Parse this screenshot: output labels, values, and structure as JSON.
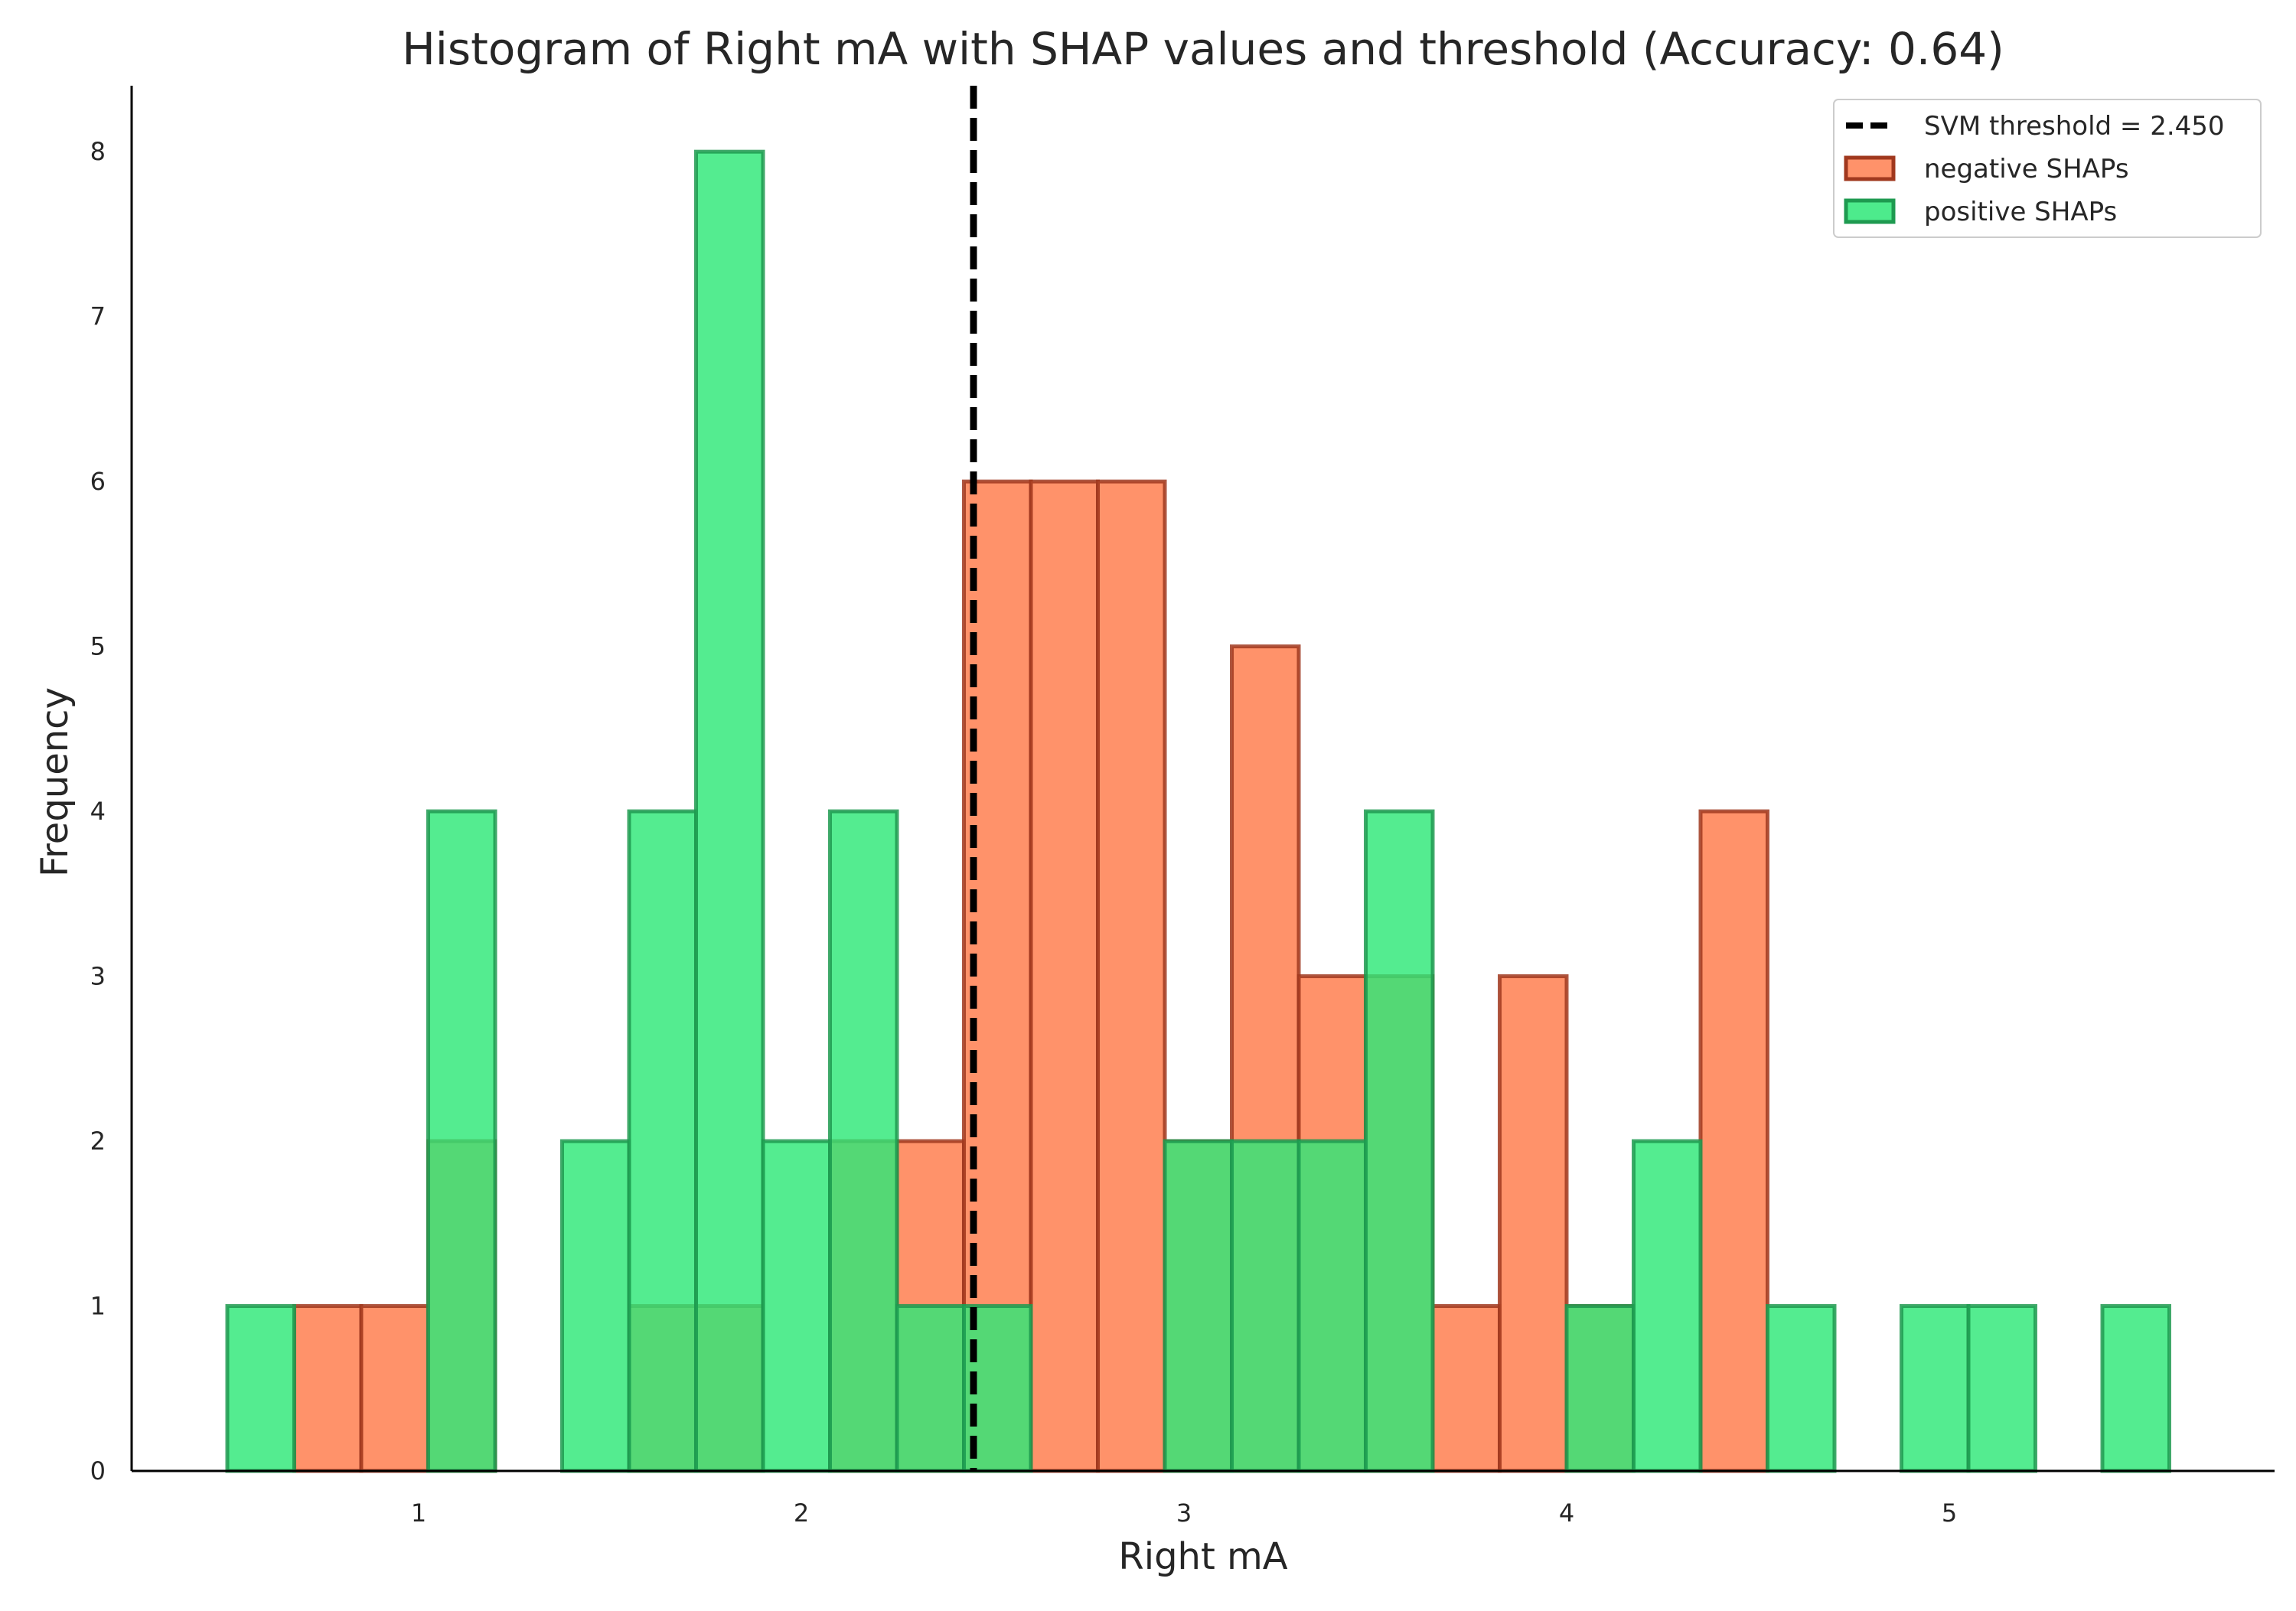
{
  "chart_data": {
    "type": "bar",
    "title": "Histogram of Right mA with SHAP values and threshold (Accuracy: 0.64)",
    "xlabel": "Right mA",
    "ylabel": "Frequency",
    "xlim": [
      0.25,
      5.85
    ],
    "ylim": [
      0,
      8.4
    ],
    "xticks": [
      1,
      2,
      3,
      4,
      5
    ],
    "yticks": [
      0,
      1,
      2,
      3,
      4,
      5,
      6,
      7,
      8
    ],
    "bin_edges": [
      0.5,
      0.675,
      0.85,
      1.025,
      1.2,
      1.375,
      1.55,
      1.725,
      1.9,
      2.075,
      2.25,
      2.425,
      2.6,
      2.775,
      2.95,
      3.125,
      3.3,
      3.475,
      3.65,
      3.825,
      4.0,
      4.175,
      4.35,
      4.525,
      4.7,
      4.875,
      5.05,
      5.225,
      5.4,
      5.575
    ],
    "series": [
      {
        "name": "negative SHAPs",
        "color": "#ff7f50",
        "edge_color": "#a0381e",
        "values": [
          0,
          1,
          1,
          2,
          0,
          0,
          1,
          1,
          0,
          2,
          2,
          6,
          6,
          6,
          2,
          5,
          3,
          3,
          1,
          3,
          1,
          0,
          4,
          0,
          0,
          0,
          0,
          0,
          0
        ]
      },
      {
        "name": "positive SHAPs",
        "color": "#2ee878",
        "edge_color": "#1e9a50",
        "values": [
          1,
          0,
          0,
          4,
          0,
          2,
          4,
          8,
          2,
          4,
          1,
          1,
          0,
          0,
          2,
          2,
          2,
          4,
          0,
          0,
          1,
          2,
          0,
          1,
          0,
          1,
          1,
          0,
          1
        ]
      }
    ],
    "threshold": {
      "value": 2.45,
      "label": "SVM threshold = 2.450",
      "color": "#000000"
    },
    "legend_position": "top-right"
  }
}
